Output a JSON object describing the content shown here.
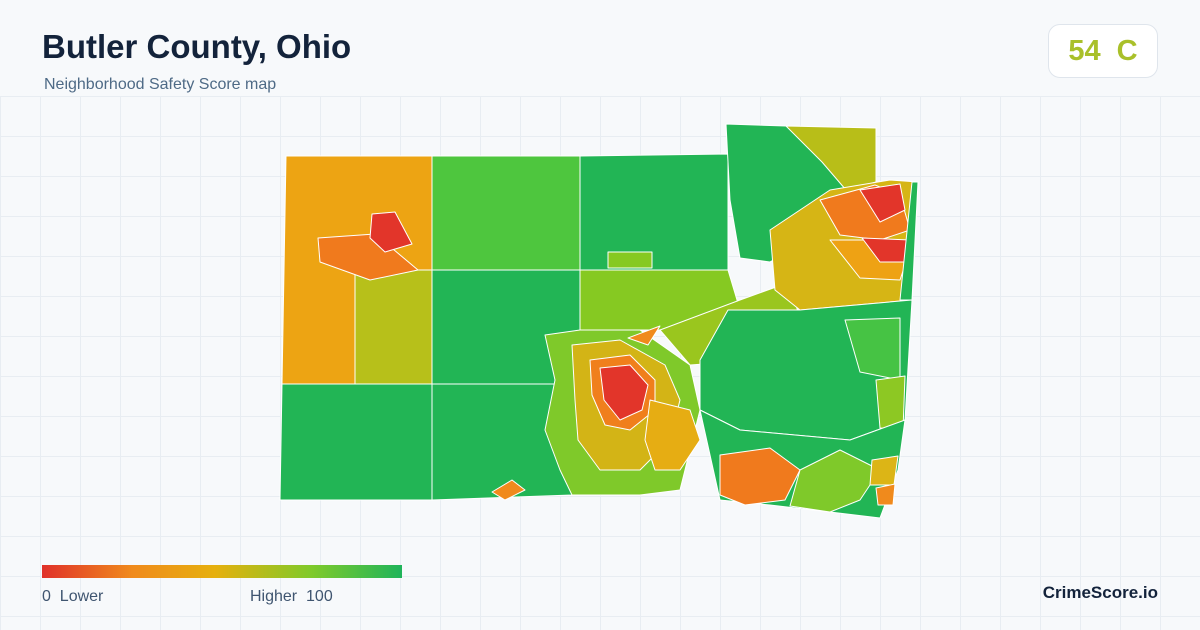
{
  "header": {
    "title": "Butler County, Ohio",
    "subtitle": "Neighborhood Safety Score map"
  },
  "score": {
    "value": "54",
    "grade": "C",
    "color": "#a9c02a"
  },
  "legend": {
    "min_value": "0",
    "min_label": "Lower",
    "max_label": "Higher",
    "max_value": "100",
    "colors": [
      "#e0312a",
      "#f08a1c",
      "#e6b00e",
      "#7fca2a",
      "#1fb45a"
    ]
  },
  "brand": "CrimeScore.io"
}
